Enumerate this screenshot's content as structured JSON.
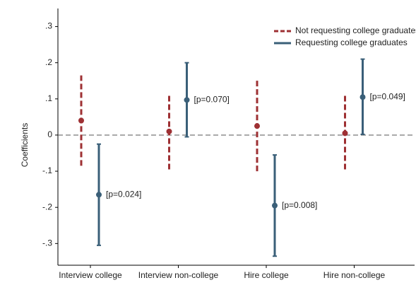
{
  "chart_data": {
    "type": "coefplot",
    "y_label": "Coefficients",
    "categories": [
      "Interview college",
      "Interview non-college",
      "Hire college",
      "Hire non-college"
    ],
    "series": [
      {
        "name": "Not requesting college graduates",
        "color": "#9e3033",
        "dashed": true,
        "values": [
          0.04,
          0.01,
          0.025,
          0.005
        ],
        "lower": [
          -0.085,
          -0.095,
          -0.1,
          -0.095
        ],
        "upper": [
          0.165,
          0.11,
          0.155,
          0.11
        ]
      },
      {
        "name": "Requesting college graduates",
        "color": "#3a5f78",
        "dashed": false,
        "values": [
          -0.165,
          0.097,
          -0.195,
          0.105
        ],
        "lower": [
          -0.305,
          -0.005,
          -0.335,
          0.002
        ],
        "upper": [
          -0.025,
          0.2,
          -0.055,
          0.21
        ],
        "p_labels": [
          "[p=0.024]",
          "[p=0.070]",
          "[p=0.008]",
          "[p=0.049]"
        ]
      }
    ],
    "reference_line": 0,
    "ylim": [
      -0.36,
      0.35
    ],
    "yticks": [
      {
        "value": -0.3,
        "label": "-.3"
      },
      {
        "value": -0.2,
        "label": "-.2"
      },
      {
        "value": -0.1,
        "label": "-.1"
      },
      0,
      {
        "value": 0.1,
        "label": ".1"
      },
      {
        "value": 0.2,
        "label": ".2"
      },
      {
        "value": 0.3,
        "label": ".3"
      }
    ],
    "legend_position": "top-right"
  }
}
